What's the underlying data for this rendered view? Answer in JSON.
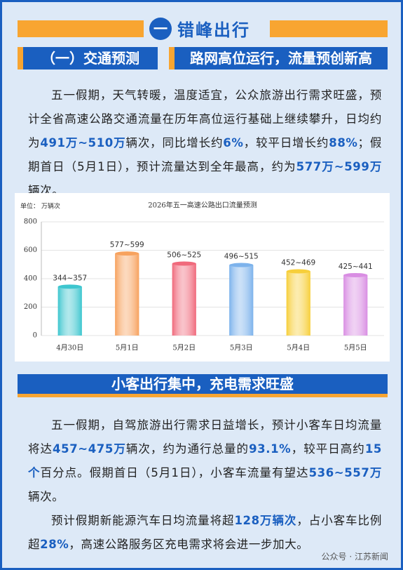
{
  "header": {
    "number": "一",
    "title": "错峰出行"
  },
  "section1": {
    "label": "（一）交通预测",
    "headline": "路网高位运行，流量预创新高",
    "paragraphs": [
      [
        {
          "text": "五一假期，天气转暖，温度适宜，公众旅游出行需求旺盛，预计全省高速公路交通流量在历年高位运行基础上继续攀升，日均约为"
        },
        {
          "text": "491万~510万",
          "em": true
        },
        {
          "text": "辆次，同比增长约"
        },
        {
          "text": "6%",
          "em": true
        },
        {
          "text": "，较平日增长约"
        },
        {
          "text": "88%",
          "em": true
        },
        {
          "text": "；假期首日（5月1日），预计流量达到全年最高，约为"
        },
        {
          "text": "577万~599万",
          "em": true
        },
        {
          "text": "辆次。"
        }
      ]
    ]
  },
  "chart_data": {
    "type": "bar",
    "title": "2026年五一高速公路出口流量预测",
    "unit_label": "单位： 万辆次",
    "categories": [
      "4月30日",
      "5月1日",
      "5月2日",
      "5月3日",
      "5月4日",
      "5月5日"
    ],
    "values": [
      344,
      577,
      506,
      496,
      452,
      425
    ],
    "value_labels": [
      "344~357",
      "577~599",
      "506~525",
      "496~515",
      "452~469",
      "425~441"
    ],
    "colors": [
      "#3ec6cf",
      "#f7a25e",
      "#f06a7c",
      "#7db3ec",
      "#f7cf3a",
      "#d98ee3"
    ],
    "ylim": [
      0,
      800
    ],
    "yticks": [
      0,
      200,
      400,
      600,
      800
    ],
    "grid": true
  },
  "section2": {
    "headline": "小客出行集中，充电需求旺盛",
    "paragraphs": [
      [
        {
          "text": "五一假期，自驾旅游出行需求日益增长，预计小客车日均流量将达"
        },
        {
          "text": "457~475万",
          "em": true
        },
        {
          "text": "辆次，约为通行总量的"
        },
        {
          "text": "93.1%",
          "em": true
        },
        {
          "text": "，较平日高约"
        },
        {
          "text": "15个",
          "em": true
        },
        {
          "text": "百分点。假期首日（5月1日），小客车流量有望达"
        },
        {
          "text": "536~557万",
          "em": true
        },
        {
          "text": "辆次。"
        }
      ],
      [
        {
          "text": "预计假期新能源汽车日均流量将超"
        },
        {
          "text": "128万辆次",
          "em": true
        },
        {
          "text": "，占小客车比例超"
        },
        {
          "text": "28%",
          "em": true
        },
        {
          "text": "，高速公路服务区充电需求将会进一步加大。"
        }
      ]
    ]
  },
  "footer": {
    "source": "公众号 · 江苏新闻"
  }
}
